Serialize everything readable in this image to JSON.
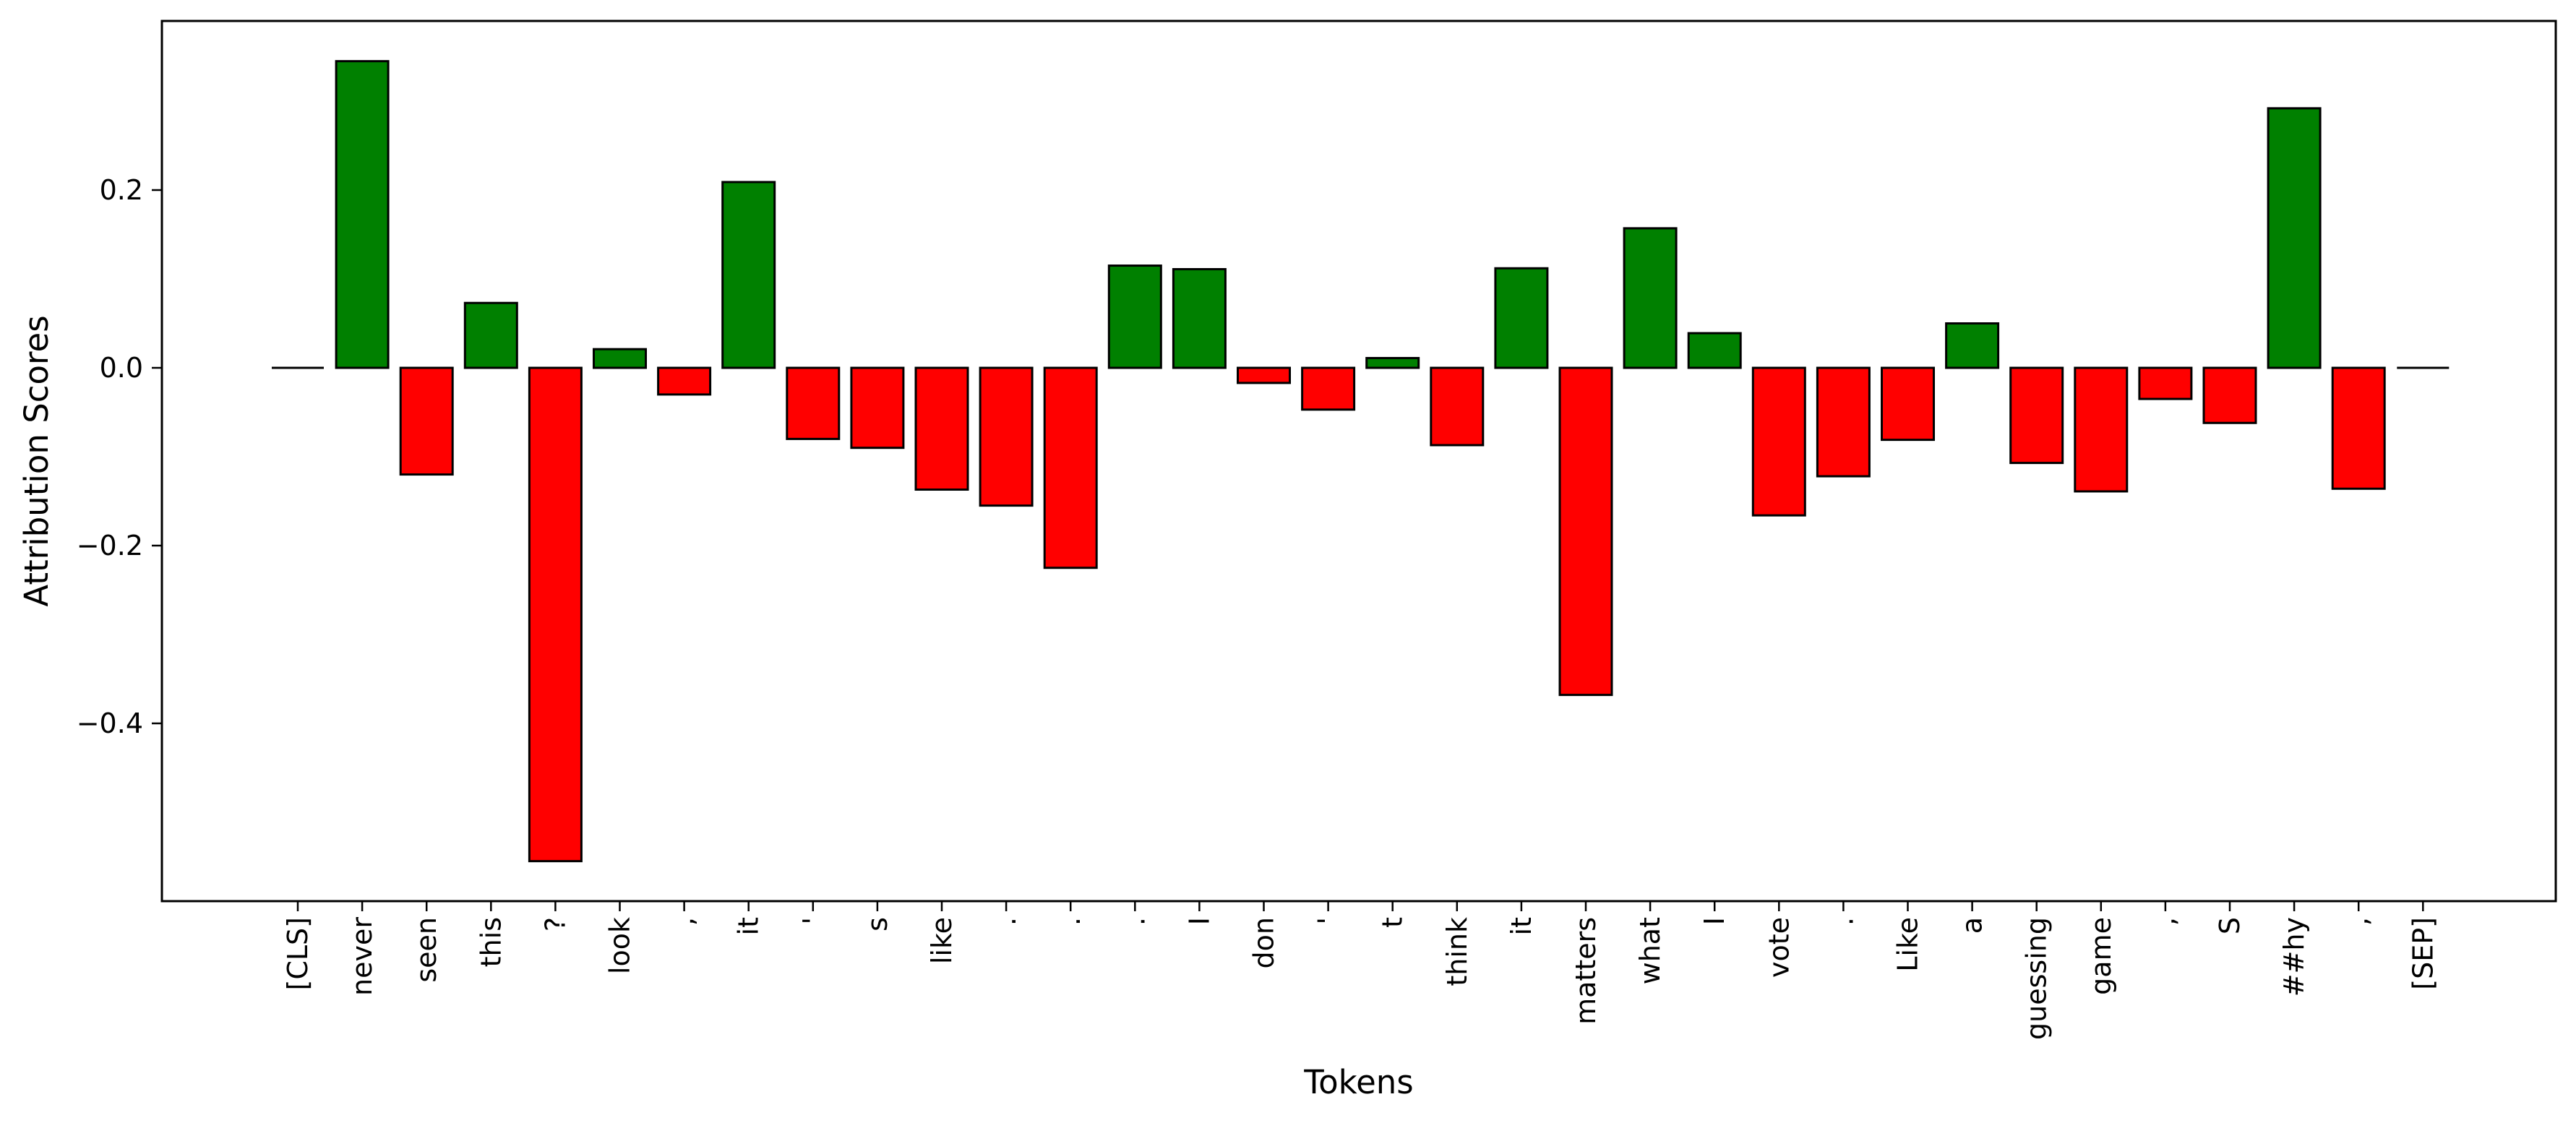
{
  "chart_data": {
    "type": "bar",
    "xlabel": "Tokens",
    "ylabel": "Attribution Scores",
    "ylim": [
      -0.6,
      0.4
    ],
    "yticks": [
      -0.4,
      -0.2,
      0.0,
      0.2
    ],
    "ytick_labels": [
      "−0.4",
      "−0.2",
      "0.0",
      "0.2"
    ],
    "grid": false,
    "legend": "none",
    "categories": [
      "[CLS]",
      "never",
      "seen",
      "this",
      "?",
      "look",
      ",",
      "it",
      "'",
      "s",
      "like",
      ".",
      ".",
      ".",
      "I",
      "don",
      "'",
      "t",
      "think",
      "it",
      "matters",
      "what",
      "I",
      "vote",
      ".",
      "Like",
      "a",
      "guessing",
      "game",
      ",",
      "S",
      "##hy",
      ",",
      "[SEP]"
    ],
    "values": [
      0.0,
      0.345,
      -0.12,
      0.073,
      -0.555,
      0.021,
      -0.03,
      0.209,
      -0.08,
      -0.09,
      -0.137,
      -0.155,
      -0.225,
      0.115,
      0.111,
      -0.017,
      -0.047,
      0.011,
      -0.087,
      0.112,
      -0.368,
      0.157,
      0.039,
      -0.166,
      -0.122,
      -0.081,
      0.05,
      -0.107,
      -0.139,
      -0.035,
      -0.062,
      0.292,
      -0.136,
      0.0
    ],
    "colors": {
      "positive": "#008000",
      "negative": "#ff0000",
      "edge": "#000000"
    }
  }
}
